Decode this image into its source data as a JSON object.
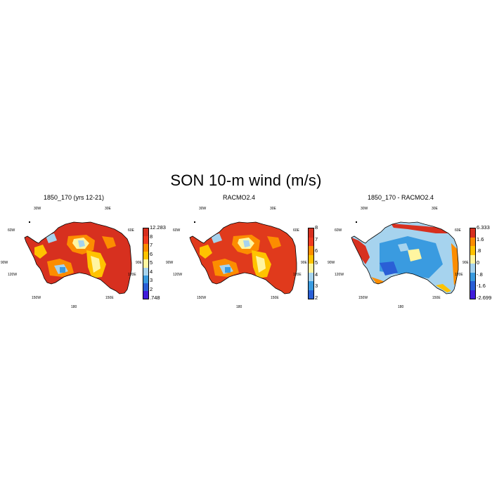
{
  "main_title": "SON 10-m wind (m/s)",
  "lon_labels": {
    "w30": "30W",
    "e30": "30E",
    "w60": "60W",
    "e60": "60E",
    "w90": "90W",
    "e90": "90E",
    "w120": "120W",
    "e120": "120E",
    "w150": "150W",
    "e150": "150E",
    "s180": "180"
  },
  "panels": [
    {
      "id": "model",
      "title": "1850_170 (yrs 12-21)",
      "colorbar": {
        "labels": [
          "12.283",
          "8",
          "7",
          "6",
          "5",
          "4",
          "3",
          "2",
          ".748"
        ],
        "colors": [
          "#d7301f",
          "#f03b20",
          "#fc8d00",
          "#ffc300",
          "#fff5a0",
          "#a6d3ee",
          "#3a9be0",
          "#2a5fd6",
          "#3f1ddb"
        ]
      },
      "dominant": "#d7301f"
    },
    {
      "id": "racmo",
      "title": "RACMO2.4",
      "colorbar": {
        "labels": [
          "8",
          "7",
          "6",
          "5",
          "4",
          "3",
          "2"
        ],
        "colors": [
          "#d7301f",
          "#f03b20",
          "#fc8d00",
          "#ffc300",
          "#fff5a0",
          "#a6d3ee",
          "#3a9be0",
          "#2a5fd6"
        ]
      },
      "dominant": "#e03a1c"
    },
    {
      "id": "diff",
      "title": "1850_170 - RACMO2.4",
      "colorbar": {
        "labels": [
          "6.333",
          "1.6",
          ".8",
          "0",
          "-.8",
          "-1.6",
          "-2.699"
        ],
        "colors": [
          "#d7301f",
          "#fc8d00",
          "#ffc300",
          "#fff5a0",
          "#a6d3ee",
          "#3a9be0",
          "#2a5fd6",
          "#3f1ddb"
        ]
      },
      "dominant": "#a6d3ee"
    }
  ]
}
